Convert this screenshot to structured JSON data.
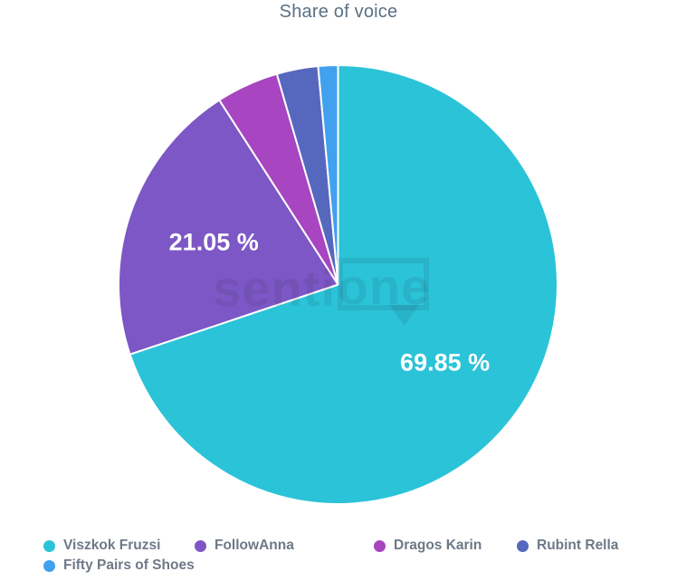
{
  "title": "Share of voice",
  "watermark": {
    "left_text": "senti",
    "boxed_text": "one"
  },
  "colors": {
    "title_text": "#5a7083",
    "legend_text": "#6e7987",
    "slice_label_text": "#ffffff",
    "slice_separator": "#ffffff"
  },
  "chart_data": {
    "type": "pie",
    "title": "Share of voice",
    "start_angle_deg": 0,
    "direction": "clockwise",
    "legend_position": "bottom",
    "slices": [
      {
        "name": "Viszkok Fruzsi",
        "value": 69.85,
        "label": "69.85 %",
        "color": "#2bc3d8"
      },
      {
        "name": "FollowAnna",
        "value": 21.05,
        "label": "21.05 %",
        "color": "#7d57c5"
      },
      {
        "name": "Dragos Karin",
        "value": 4.6,
        "label": "",
        "color": "#a845c0"
      },
      {
        "name": "Rubint Rella",
        "value": 3.05,
        "label": "",
        "color": "#5667be"
      },
      {
        "name": "Fifty Pairs of Shoes",
        "value": 1.45,
        "label": "",
        "color": "#41a1ee"
      }
    ]
  }
}
